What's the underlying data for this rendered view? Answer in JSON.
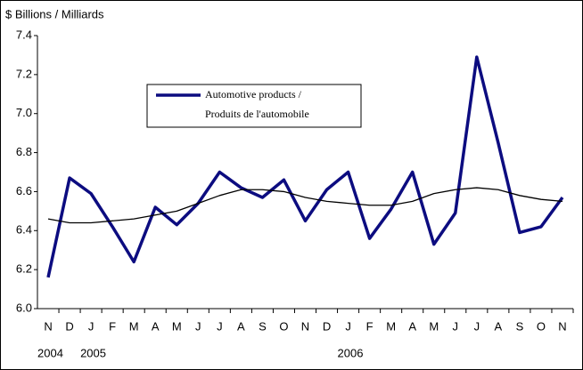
{
  "chart_data": {
    "type": "line",
    "y_axis_label": "$ Billions / Milliards",
    "categories": [
      "N",
      "D",
      "J",
      "F",
      "M",
      "A",
      "M",
      "J",
      "J",
      "A",
      "S",
      "O",
      "N",
      "D",
      "J",
      "F",
      "M",
      "A",
      "M",
      "J",
      "J",
      "A",
      "S",
      "O",
      "N"
    ],
    "year_labels": [
      {
        "index": 0,
        "label": "2004"
      },
      {
        "index": 2,
        "label": "2005"
      },
      {
        "index": 14,
        "label": "2006"
      }
    ],
    "series": [
      {
        "name": "Automotive products /\nProduits de l'automobile",
        "color": "#0c0c80",
        "values": [
          6.16,
          6.67,
          6.59,
          6.42,
          6.24,
          6.52,
          6.43,
          6.54,
          6.7,
          6.62,
          6.57,
          6.66,
          6.45,
          6.61,
          6.7,
          6.36,
          6.51,
          6.7,
          6.33,
          6.49,
          7.29,
          6.85,
          6.39,
          6.42,
          6.57
        ]
      },
      {
        "color": "#000000",
        "values": [
          6.46,
          6.44,
          6.44,
          6.45,
          6.46,
          6.48,
          6.5,
          6.54,
          6.58,
          6.61,
          6.61,
          6.6,
          6.57,
          6.55,
          6.54,
          6.53,
          6.53,
          6.55,
          6.59,
          6.61,
          6.62,
          6.61,
          6.58,
          6.56,
          6.55
        ]
      }
    ],
    "ylim": [
      6.0,
      7.4
    ],
    "yticks": [
      {
        "value": 6,
        "label": "6.0"
      },
      6.2,
      6.4,
      6.6,
      6.8,
      {
        "value": 7,
        "label": "7.0"
      },
      7.2,
      7.4
    ],
    "legend": "top-left"
  }
}
